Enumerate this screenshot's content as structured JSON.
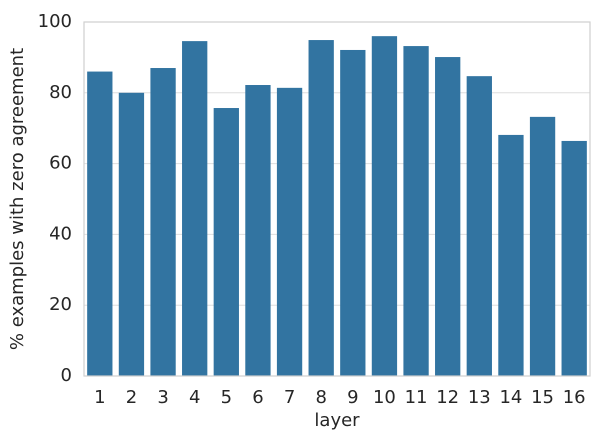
{
  "chart_data": {
    "type": "bar",
    "x_label": "layer",
    "y_label": "% examples with zero agreement",
    "categories": [
      "1",
      "2",
      "3",
      "4",
      "5",
      "6",
      "7",
      "8",
      "9",
      "10",
      "11",
      "12",
      "13",
      "14",
      "15",
      "16"
    ],
    "values": [
      86,
      80,
      87,
      94.6,
      75.7,
      82.2,
      81.4,
      94.9,
      92.1,
      96,
      93.2,
      90.1,
      84.7,
      68.1,
      73.2,
      66.4
    ],
    "color": "#3274a1",
    "ylim": [
      0,
      100
    ],
    "yticks": [
      0,
      20,
      40,
      60,
      80,
      100
    ],
    "grid": true
  }
}
